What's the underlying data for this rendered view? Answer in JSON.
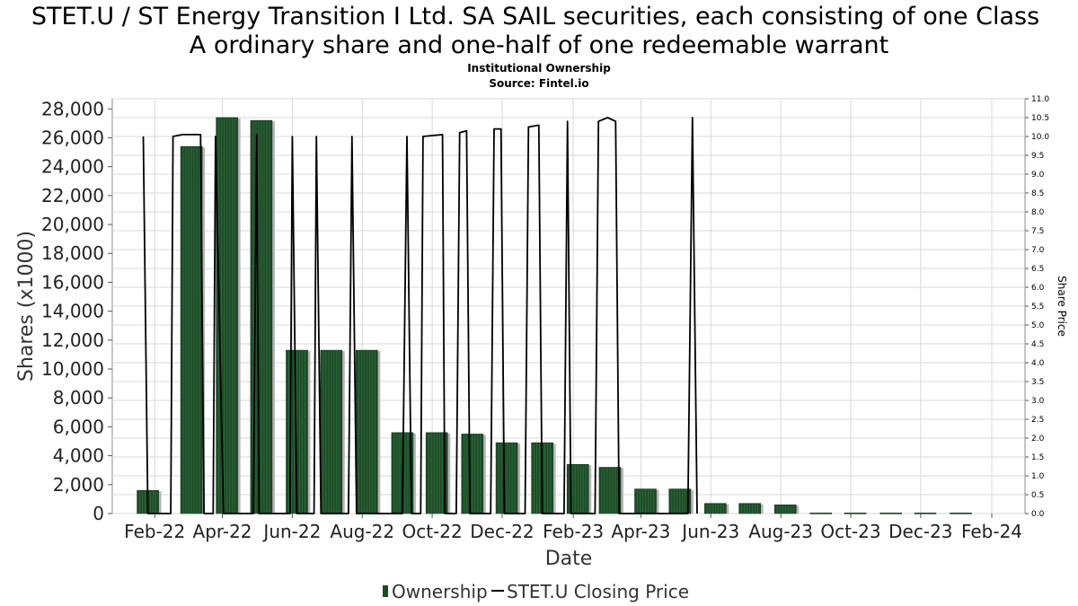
{
  "chart_data": {
    "type": "bar",
    "title_lines": [
      "STET.U / ST Energy Transition I Ltd. SA SAIL securities, each consisting of one Class",
      "A ordinary share and one-half of one redeemable warrant"
    ],
    "subtitle_lines": [
      "Institutional Ownership",
      "Source: Fintel.io"
    ],
    "xlabel": "Date",
    "ylabel_left": "Shares (x1000)",
    "ylabel_right": "Share Price",
    "ylim_left": [
      0,
      28700
    ],
    "ylim_right": [
      0,
      11.0
    ],
    "left_ticks": [
      0,
      2000,
      4000,
      6000,
      8000,
      10000,
      12000,
      14000,
      16000,
      18000,
      20000,
      22000,
      24000,
      26000,
      28000
    ],
    "left_tick_labels": [
      "0",
      "2,000",
      "4,000",
      "6,000",
      "8,000",
      "10,000",
      "12,000",
      "14,000",
      "16,000",
      "18,000",
      "20,000",
      "22,000",
      "24,000",
      "26,000",
      "28,000"
    ],
    "right_ticks": [
      0,
      0.5,
      1.0,
      1.5,
      2.0,
      2.5,
      3.0,
      3.5,
      4.0,
      4.5,
      5.0,
      5.5,
      6.0,
      6.5,
      7.0,
      7.5,
      8.0,
      8.5,
      9.0,
      9.5,
      10.0,
      10.5,
      11.0
    ],
    "right_tick_labels": [
      "0.0",
      "0.5",
      "1.0",
      "1.5",
      "2.0",
      "2.5",
      "3.0",
      "3.5",
      "4.0",
      "4.5",
      "5.0",
      "5.5",
      "6.0",
      "6.5",
      "7.0",
      "7.5",
      "8.0",
      "8.5",
      "9.0",
      "9.5",
      "10.0",
      "10.5",
      "11.0"
    ],
    "x_domain": [
      "2021-12-26",
      "2024-03-01"
    ],
    "x_ticks": [
      "2022-02-01",
      "2022-04-01",
      "2022-06-01",
      "2022-08-01",
      "2022-10-01",
      "2022-12-01",
      "2023-02-01",
      "2023-04-01",
      "2023-06-01",
      "2023-08-01",
      "2023-10-01",
      "2023-12-01",
      "2024-02-01"
    ],
    "x_tick_labels": [
      "Feb-22",
      "Apr-22",
      "Jun-22",
      "Aug-22",
      "Oct-22",
      "Dec-22",
      "Feb-23",
      "Apr-23",
      "Jun-23",
      "Aug-23",
      "Oct-23",
      "Dec-23",
      "Feb-24"
    ],
    "grid": true,
    "legend_position": "bottom-center",
    "series": [
      {
        "name": "Ownership",
        "axis": "left",
        "color": "#1e4a28",
        "points": [
          {
            "date": "2022-01-26",
            "value": 1600
          },
          {
            "date": "2022-03-05",
            "value": 25400
          },
          {
            "date": "2022-04-05",
            "value": 27400
          },
          {
            "date": "2022-05-05",
            "value": 27200
          },
          {
            "date": "2022-06-05",
            "value": 11300
          },
          {
            "date": "2022-07-05",
            "value": 11300
          },
          {
            "date": "2022-08-05",
            "value": 11300
          },
          {
            "date": "2022-09-05",
            "value": 5600
          },
          {
            "date": "2022-10-05",
            "value": 5600
          },
          {
            "date": "2022-11-05",
            "value": 5500
          },
          {
            "date": "2022-12-05",
            "value": 4900
          },
          {
            "date": "2023-01-05",
            "value": 4900
          },
          {
            "date": "2023-02-05",
            "value": 3400
          },
          {
            "date": "2023-03-05",
            "value": 3200
          },
          {
            "date": "2023-04-05",
            "value": 1700
          },
          {
            "date": "2023-05-05",
            "value": 1700
          },
          {
            "date": "2023-06-05",
            "value": 700
          },
          {
            "date": "2023-07-05",
            "value": 700
          },
          {
            "date": "2023-08-05",
            "value": 600
          },
          {
            "date": "2023-09-05",
            "value": 40
          },
          {
            "date": "2023-10-05",
            "value": 40
          },
          {
            "date": "2023-11-05",
            "value": 40
          },
          {
            "date": "2023-12-05",
            "value": 40
          },
          {
            "date": "2024-01-05",
            "value": 40
          }
        ]
      },
      {
        "name": "STET.U Closing Price",
        "axis": "right",
        "color": "#000000",
        "points": [
          {
            "date": "2022-01-22",
            "value": 10.0
          },
          {
            "date": "2022-01-26",
            "value": 0.0
          },
          {
            "date": "2022-02-15",
            "value": 0.0
          },
          {
            "date": "2022-02-17",
            "value": 10.0
          },
          {
            "date": "2022-02-25",
            "value": 10.05
          },
          {
            "date": "2022-03-13",
            "value": 10.05
          },
          {
            "date": "2022-03-16",
            "value": 0.0
          },
          {
            "date": "2022-03-24",
            "value": 0.0
          },
          {
            "date": "2022-03-26",
            "value": 10.0
          },
          {
            "date": "2022-04-02",
            "value": 0.0
          },
          {
            "date": "2022-04-28",
            "value": 0.0
          },
          {
            "date": "2022-05-01",
            "value": 10.05
          },
          {
            "date": "2022-05-03",
            "value": 0.0
          },
          {
            "date": "2022-05-30",
            "value": 0.0
          },
          {
            "date": "2022-06-01",
            "value": 10.0
          },
          {
            "date": "2022-06-05",
            "value": 0.0
          },
          {
            "date": "2022-06-20",
            "value": 0.0
          },
          {
            "date": "2022-06-22",
            "value": 10.0
          },
          {
            "date": "2022-06-26",
            "value": 0.0
          },
          {
            "date": "2022-07-20",
            "value": 0.0
          },
          {
            "date": "2022-07-23",
            "value": 10.0
          },
          {
            "date": "2022-07-27",
            "value": 0.0
          },
          {
            "date": "2022-09-05",
            "value": 0.0
          },
          {
            "date": "2022-09-09",
            "value": 10.0
          },
          {
            "date": "2022-09-13",
            "value": 0.0
          },
          {
            "date": "2022-09-21",
            "value": 0.0
          },
          {
            "date": "2022-09-23",
            "value": 10.0
          },
          {
            "date": "2022-10-10",
            "value": 10.05
          },
          {
            "date": "2022-10-12",
            "value": 0.0
          },
          {
            "date": "2022-10-22",
            "value": 0.0
          },
          {
            "date": "2022-10-25",
            "value": 10.1
          },
          {
            "date": "2022-10-31",
            "value": 10.15
          },
          {
            "date": "2022-11-03",
            "value": 0.0
          },
          {
            "date": "2022-11-21",
            "value": 0.0
          },
          {
            "date": "2022-11-24",
            "value": 10.2
          },
          {
            "date": "2022-11-30",
            "value": 10.2
          },
          {
            "date": "2022-12-03",
            "value": 0.0
          },
          {
            "date": "2022-12-21",
            "value": 0.0
          },
          {
            "date": "2022-12-24",
            "value": 10.25
          },
          {
            "date": "2023-01-02",
            "value": 10.3
          },
          {
            "date": "2023-01-05",
            "value": 0.0
          },
          {
            "date": "2023-01-24",
            "value": 0.0
          },
          {
            "date": "2023-01-27",
            "value": 10.4
          },
          {
            "date": "2023-01-30",
            "value": 0.0
          },
          {
            "date": "2023-02-20",
            "value": 0.0
          },
          {
            "date": "2023-02-23",
            "value": 10.4
          },
          {
            "date": "2023-03-03",
            "value": 10.5
          },
          {
            "date": "2023-03-10",
            "value": 10.4
          },
          {
            "date": "2023-03-13",
            "value": 0.0
          },
          {
            "date": "2023-05-12",
            "value": 0.0
          },
          {
            "date": "2023-05-16",
            "value": 10.5
          },
          {
            "date": "2023-05-20",
            "value": 0.0
          }
        ]
      }
    ]
  }
}
